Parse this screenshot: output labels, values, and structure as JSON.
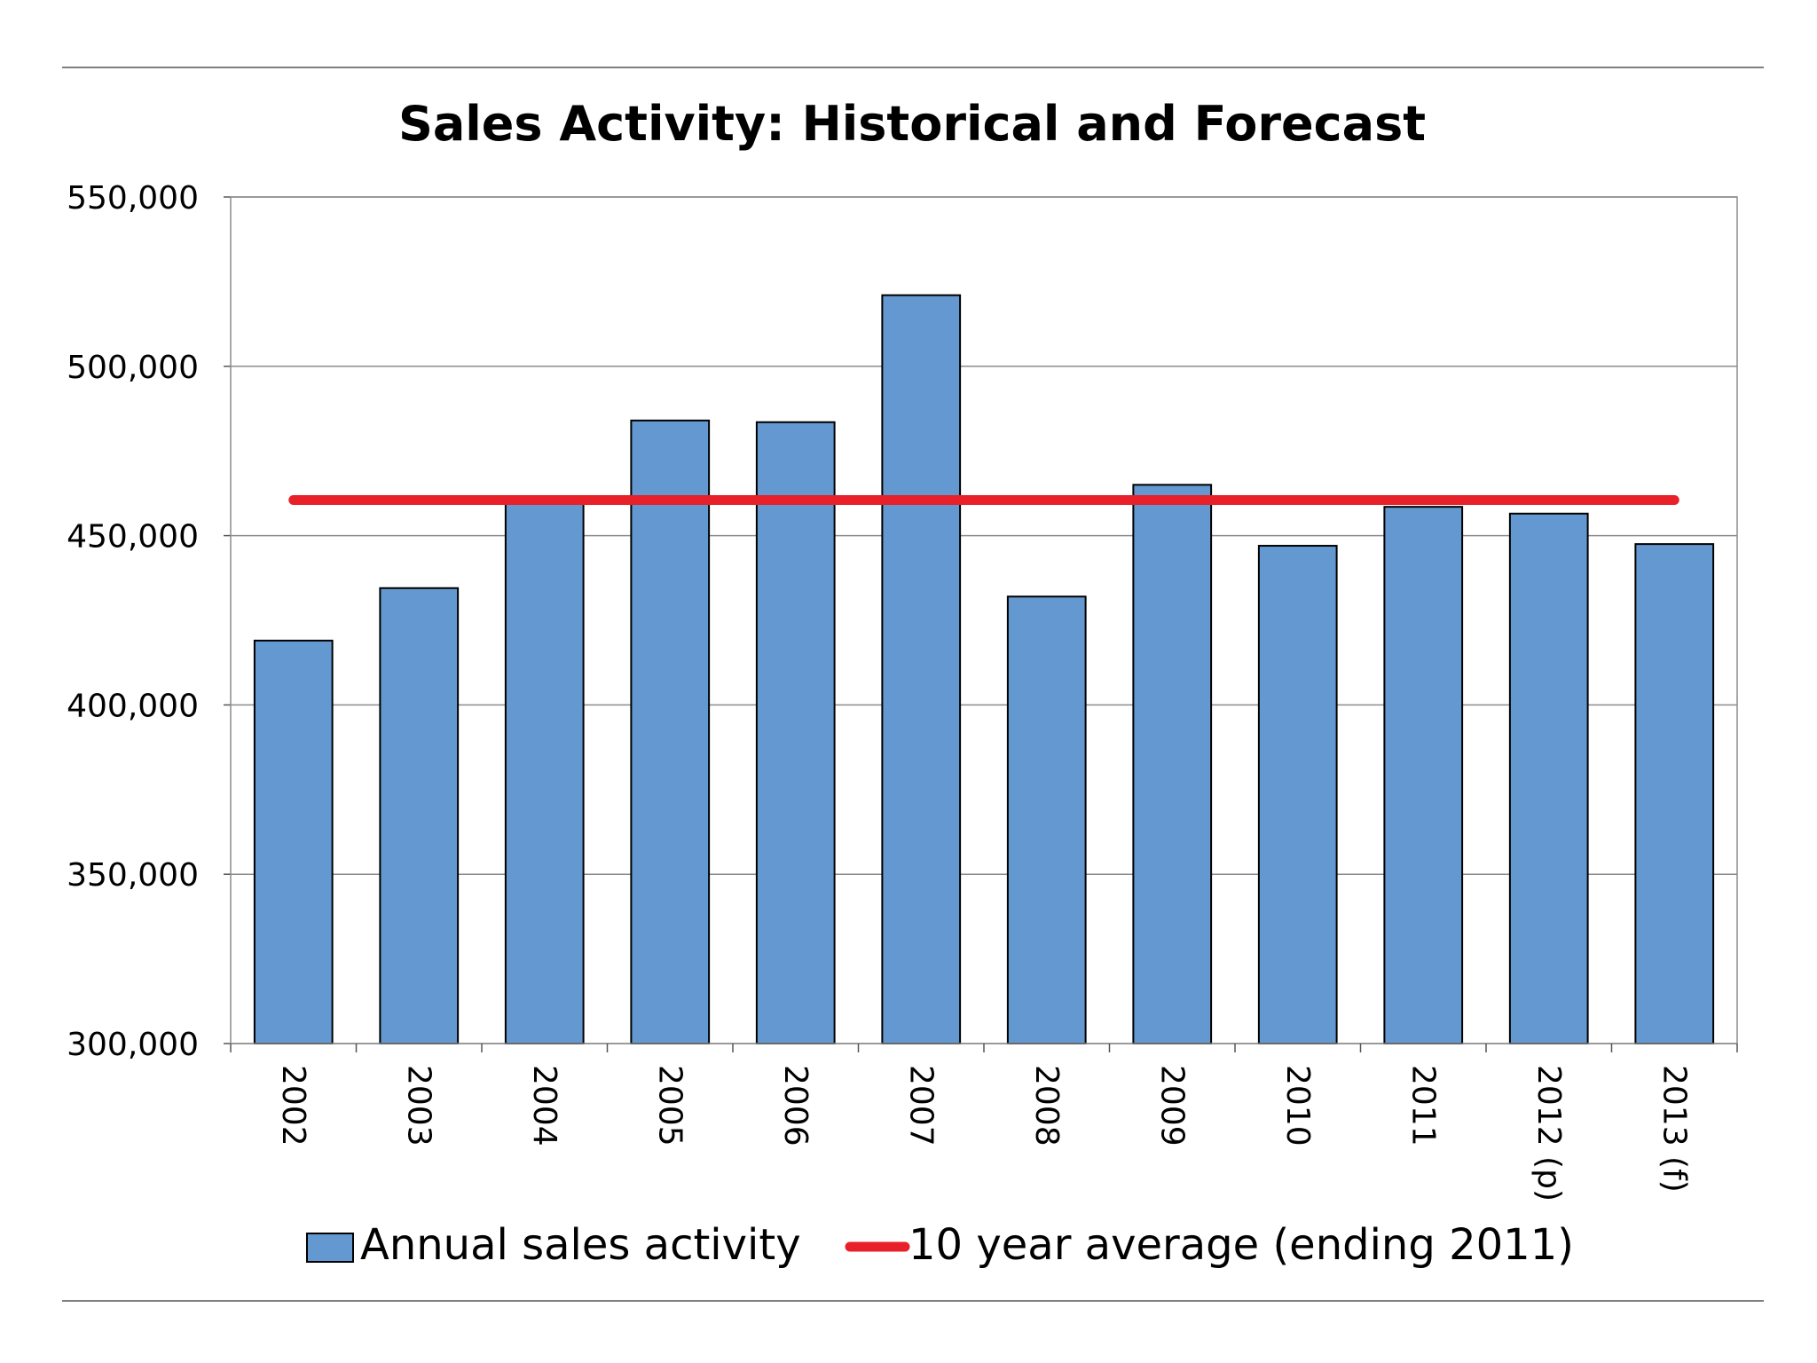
{
  "chart_data": {
    "type": "bar",
    "title": "Sales Activity: Historical and Forecast",
    "xlabel": "",
    "ylabel": "",
    "ylim": [
      300000,
      550000
    ],
    "yticks": [
      300000,
      350000,
      400000,
      450000,
      500000,
      550000
    ],
    "ytick_labels": [
      "300,000",
      "350,000",
      "400,000",
      "450,000",
      "500,000",
      "550,000"
    ],
    "grid": true,
    "categories": [
      "2002",
      "2003",
      "2004",
      "2005",
      "2006",
      "2007",
      "2008",
      "2009",
      "2010",
      "2011",
      "2012 (p)",
      "2013 (f)"
    ],
    "series": [
      {
        "name": "Annual sales activity",
        "type": "bar",
        "color": "#6399D0",
        "values": [
          419000,
          434500,
          460500,
          484000,
          483500,
          521000,
          432000,
          465000,
          447000,
          458500,
          456500,
          447500
        ]
      },
      {
        "name": "10 year average (ending 2011)",
        "type": "line",
        "color": "#E8202A",
        "values": [
          460500,
          460500,
          460500,
          460500,
          460500,
          460500,
          460500,
          460500,
          460500,
          460500,
          460500,
          460500
        ]
      }
    ],
    "legend": {
      "position": "bottom",
      "items": [
        "Annual sales activity",
        "10 year average (ending 2011)"
      ]
    }
  }
}
